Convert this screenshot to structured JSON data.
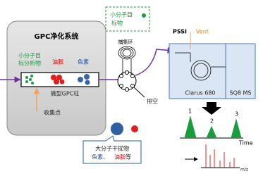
{
  "left_box": {
    "title": "GPC净化系统",
    "analyte_label": [
      "小分子目",
      "标分析物"
    ],
    "fat_label": "油脂",
    "pigment_label": "色素",
    "column_label": "微型GPC柱",
    "collection_point": "收集点"
  },
  "callout_top": [
    "小分子目",
    "标物"
  ],
  "trap_loop": "捕集环",
  "waste": "排空",
  "callout_bottom": {
    "line1": "大分子干扰物",
    "line2_a": "色素、",
    "line2_b": "油脂",
    "line2_c": "等"
  },
  "instrument": {
    "pssi": "PSSI",
    "vent": "Vent",
    "gc": "Clarus 680",
    "ms": "SQ8 MS"
  },
  "chromatogram": {
    "peaks": [
      "1",
      "2",
      "3"
    ],
    "x_label": "Time"
  },
  "spectrum": {
    "x_label": "m/z"
  }
}
